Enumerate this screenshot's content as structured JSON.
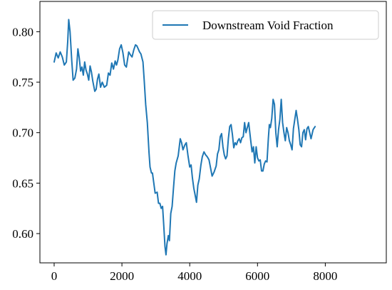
{
  "chart_data": {
    "type": "line",
    "title": "",
    "xlabel": "",
    "ylabel": "",
    "xlim": [
      -420,
      9800
    ],
    "ylim": [
      0.571,
      0.83
    ],
    "xticks": [
      0,
      2000,
      4000,
      6000,
      8000
    ],
    "yticks": [
      0.6,
      0.65,
      0.7,
      0.75,
      0.8
    ],
    "xtick_labels": [
      "0",
      "2000",
      "4000",
      "6000",
      "8000"
    ],
    "ytick_labels": [
      "0.60",
      "0.65",
      "0.70",
      "0.75",
      "0.80"
    ],
    "grid": false,
    "legend_position": "top-right",
    "series": [
      {
        "name": "Downstream Void Fraction",
        "color": "#1f77b4",
        "points": [
          [
            0,
            0.77
          ],
          [
            60,
            0.779
          ],
          [
            120,
            0.774
          ],
          [
            180,
            0.78
          ],
          [
            240,
            0.775
          ],
          [
            300,
            0.767
          ],
          [
            360,
            0.77
          ],
          [
            400,
            0.79
          ],
          [
            430,
            0.812
          ],
          [
            470,
            0.8
          ],
          [
            520,
            0.771
          ],
          [
            560,
            0.752
          ],
          [
            610,
            0.754
          ],
          [
            660,
            0.763
          ],
          [
            700,
            0.783
          ],
          [
            740,
            0.774
          ],
          [
            780,
            0.761
          ],
          [
            820,
            0.765
          ],
          [
            860,
            0.757
          ],
          [
            900,
            0.77
          ],
          [
            940,
            0.762
          ],
          [
            980,
            0.758
          ],
          [
            1020,
            0.752
          ],
          [
            1060,
            0.766
          ],
          [
            1100,
            0.76
          ],
          [
            1140,
            0.751
          ],
          [
            1200,
            0.741
          ],
          [
            1240,
            0.743
          ],
          [
            1280,
            0.753
          ],
          [
            1320,
            0.758
          ],
          [
            1370,
            0.745
          ],
          [
            1420,
            0.75
          ],
          [
            1480,
            0.745
          ],
          [
            1550,
            0.747
          ],
          [
            1600,
            0.759
          ],
          [
            1650,
            0.757
          ],
          [
            1700,
            0.769
          ],
          [
            1750,
            0.763
          ],
          [
            1800,
            0.771
          ],
          [
            1840,
            0.767
          ],
          [
            1880,
            0.772
          ],
          [
            1930,
            0.783
          ],
          [
            1980,
            0.787
          ],
          [
            2030,
            0.779
          ],
          [
            2080,
            0.767
          ],
          [
            2130,
            0.765
          ],
          [
            2200,
            0.78
          ],
          [
            2250,
            0.777
          ],
          [
            2300,
            0.775
          ],
          [
            2350,
            0.782
          ],
          [
            2400,
            0.787
          ],
          [
            2440,
            0.786
          ],
          [
            2480,
            0.783
          ],
          [
            2520,
            0.78
          ],
          [
            2560,
            0.778
          ],
          [
            2620,
            0.77
          ],
          [
            2660,
            0.75
          ],
          [
            2700,
            0.728
          ],
          [
            2750,
            0.71
          ],
          [
            2800,
            0.68
          ],
          [
            2830,
            0.666
          ],
          [
            2870,
            0.66
          ],
          [
            2900,
            0.66
          ],
          [
            2940,
            0.65
          ],
          [
            2980,
            0.64
          ],
          [
            3040,
            0.641
          ],
          [
            3080,
            0.63
          ],
          [
            3120,
            0.63
          ],
          [
            3160,
            0.625
          ],
          [
            3200,
            0.627
          ],
          [
            3230,
            0.61
          ],
          [
            3270,
            0.587
          ],
          [
            3300,
            0.579
          ],
          [
            3330,
            0.59
          ],
          [
            3370,
            0.598
          ],
          [
            3400,
            0.593
          ],
          [
            3440,
            0.62
          ],
          [
            3480,
            0.627
          ],
          [
            3520,
            0.645
          ],
          [
            3560,
            0.662
          ],
          [
            3600,
            0.67
          ],
          [
            3660,
            0.677
          ],
          [
            3720,
            0.694
          ],
          [
            3760,
            0.69
          ],
          [
            3800,
            0.683
          ],
          [
            3860,
            0.688
          ],
          [
            3900,
            0.69
          ],
          [
            3950,
            0.677
          ],
          [
            4000,
            0.666
          ],
          [
            4040,
            0.668
          ],
          [
            4080,
            0.655
          ],
          [
            4120,
            0.645
          ],
          [
            4150,
            0.64
          ],
          [
            4200,
            0.631
          ],
          [
            4240,
            0.648
          ],
          [
            4280,
            0.654
          ],
          [
            4330,
            0.668
          ],
          [
            4370,
            0.676
          ],
          [
            4420,
            0.681
          ],
          [
            4470,
            0.678
          ],
          [
            4520,
            0.676
          ],
          [
            4570,
            0.673
          ],
          [
            4620,
            0.664
          ],
          [
            4660,
            0.657
          ],
          [
            4720,
            0.661
          ],
          [
            4780,
            0.667
          ],
          [
            4820,
            0.679
          ],
          [
            4860,
            0.683
          ],
          [
            4900,
            0.696
          ],
          [
            4940,
            0.699
          ],
          [
            4980,
            0.686
          ],
          [
            5020,
            0.678
          ],
          [
            5060,
            0.674
          ],
          [
            5100,
            0.677
          ],
          [
            5140,
            0.694
          ],
          [
            5180,
            0.706
          ],
          [
            5220,
            0.708
          ],
          [
            5260,
            0.698
          ],
          [
            5300,
            0.685
          ],
          [
            5340,
            0.69
          ],
          [
            5380,
            0.688
          ],
          [
            5420,
            0.692
          ],
          [
            5460,
            0.694
          ],
          [
            5500,
            0.69
          ],
          [
            5540,
            0.695
          ],
          [
            5580,
            0.696
          ],
          [
            5620,
            0.71
          ],
          [
            5660,
            0.7
          ],
          [
            5700,
            0.705
          ],
          [
            5740,
            0.71
          ],
          [
            5800,
            0.692
          ],
          [
            5840,
            0.681
          ],
          [
            5880,
            0.686
          ],
          [
            5920,
            0.67
          ],
          [
            5960,
            0.686
          ],
          [
            6000,
            0.675
          ],
          [
            6040,
            0.672
          ],
          [
            6080,
            0.673
          ],
          [
            6120,
            0.662
          ],
          [
            6160,
            0.662
          ],
          [
            6200,
            0.669
          ],
          [
            6240,
            0.672
          ],
          [
            6280,
            0.671
          ],
          [
            6320,
            0.694
          ],
          [
            6350,
            0.708
          ],
          [
            6380,
            0.705
          ],
          [
            6420,
            0.714
          ],
          [
            6460,
            0.733
          ],
          [
            6500,
            0.728
          ],
          [
            6540,
            0.7
          ],
          [
            6580,
            0.686
          ],
          [
            6620,
            0.703
          ],
          [
            6660,
            0.713
          ],
          [
            6700,
            0.733
          ],
          [
            6740,
            0.71
          ],
          [
            6780,
            0.7
          ],
          [
            6820,
            0.692
          ],
          [
            6860,
            0.705
          ],
          [
            6900,
            0.7
          ],
          [
            6940,
            0.692
          ],
          [
            6980,
            0.688
          ],
          [
            7020,
            0.683
          ],
          [
            7060,
            0.704
          ],
          [
            7100,
            0.713
          ],
          [
            7140,
            0.722
          ],
          [
            7180,
            0.713
          ],
          [
            7220,
            0.703
          ],
          [
            7260,
            0.688
          ],
          [
            7300,
            0.686
          ],
          [
            7340,
            0.7
          ],
          [
            7380,
            0.703
          ],
          [
            7420,
            0.693
          ],
          [
            7460,
            0.704
          ],
          [
            7500,
            0.706
          ],
          [
            7540,
            0.7
          ],
          [
            7580,
            0.694
          ],
          [
            7640,
            0.703
          ],
          [
            7700,
            0.706
          ]
        ]
      }
    ]
  }
}
